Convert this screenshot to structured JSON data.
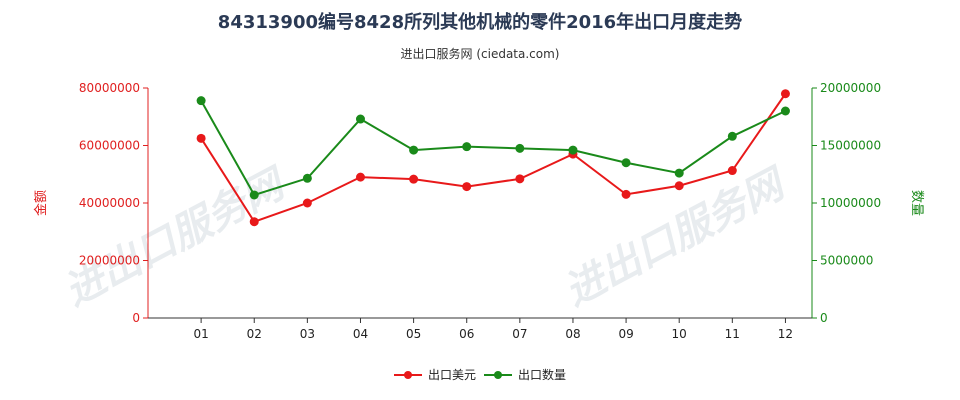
{
  "chart_data": {
    "type": "line",
    "title": "84313900编号8428所列其他机械的零件2016年出口月度走势",
    "subtitle": "进出口服务网 (ciedata.com)",
    "watermark": "进出口服务网",
    "categories": [
      "01",
      "02",
      "03",
      "04",
      "05",
      "06",
      "07",
      "08",
      "09",
      "10",
      "11",
      "12"
    ],
    "y_left": {
      "label": "金额",
      "range": [
        0,
        80000000
      ],
      "ticks": [
        "0",
        "20000000",
        "40000000",
        "60000000",
        "80000000"
      ]
    },
    "y_right": {
      "label": "数量",
      "range": [
        0,
        20000000
      ],
      "ticks": [
        "0",
        "5000000",
        "10000000",
        "15000000",
        "20000000"
      ]
    },
    "series": [
      {
        "name": "出口美元",
        "axis": "left",
        "color": "#e8191a",
        "values": [
          62500000,
          33500000,
          40000000,
          49000000,
          48300000,
          45700000,
          48400000,
          57000000,
          43000000,
          46000000,
          51300000,
          78000000
        ]
      },
      {
        "name": "出口数量",
        "axis": "right",
        "color": "#1a8a1a",
        "values": [
          18900000,
          10700000,
          12150000,
          17300000,
          14600000,
          14900000,
          14750000,
          14600000,
          13500000,
          12600000,
          15800000,
          18000000
        ]
      }
    ],
    "grid": false,
    "legend_position": "bottom-center"
  }
}
